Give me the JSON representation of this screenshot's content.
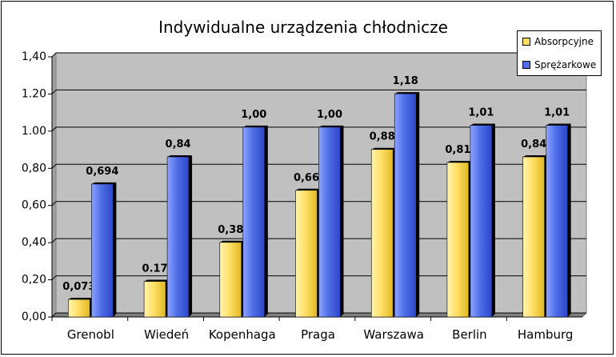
{
  "chart_data": {
    "type": "bar",
    "title": "Indywidualne urządzenia chłodnicze",
    "categories": [
      "Grenobl",
      "Wiedeń",
      "Kopenhaga",
      "Praga",
      "Warszawa",
      "Berlin",
      "Hamburg"
    ],
    "series": [
      {
        "name": "Absorpcyjne",
        "color": "#ffe066",
        "values": [
          0.073,
          0.17,
          0.38,
          0.66,
          0.88,
          0.81,
          0.84
        ],
        "labels": [
          "0,073",
          "0.17",
          "0,38",
          "0,66",
          "0,88",
          "0,81",
          "0,84"
        ]
      },
      {
        "name": "Sprężarkowe",
        "color": "#4f6fe8",
        "values": [
          0.694,
          0.84,
          1.0,
          1.0,
          1.18,
          1.01,
          1.01
        ],
        "labels": [
          "0,694",
          "0,84",
          "1,00",
          "1,00",
          "1,18",
          "1,01",
          "1,01"
        ]
      }
    ],
    "ylim": [
      0,
      1.4
    ],
    "yticks": [
      0,
      0.2,
      0.4,
      0.6,
      0.8,
      1.0,
      1.2,
      1.4
    ],
    "ytick_labels": [
      "0,00",
      "0,20",
      "0,40",
      "0,60",
      "0,80",
      "1.00",
      "1.20",
      "1,40"
    ],
    "legend_position": "top-right",
    "plot_background": "#c0c0c0",
    "grid": true
  }
}
